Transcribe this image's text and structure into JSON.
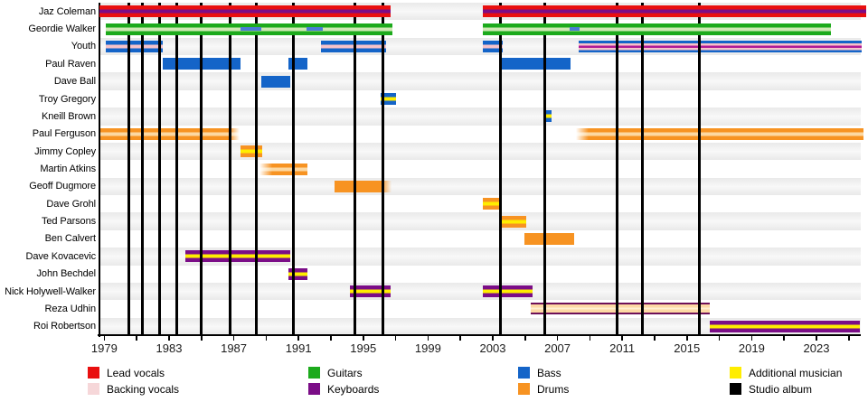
{
  "colors": {
    "lead_vocals_red": "#e90f0f",
    "keyboards_purple": "#7b0d87",
    "guitars_green": "#1caa1c",
    "pale_green_stripe": "#cfe9b4",
    "bass_blue": "#1464c8",
    "bass_overlay_blue": "#4a7bd4",
    "backing_pink_stripe": "#f7c2c9",
    "magenta_stripe": "#b01a96",
    "drums_orange": "#f79322",
    "peach_stripe": "#fcd8a2",
    "additional_yellow": "#ffed00",
    "faded_keys_edge": "#6e1058",
    "faded_keys_fill": "#fdd9a4",
    "faded_keys_center": "#fff0d2",
    "backing_vocals_pink": "#f6d7d9",
    "album_line_black": "#000000"
  },
  "legend": {
    "items": [
      {
        "label": "Lead vocals",
        "color": "#e90f0f"
      },
      {
        "label": "Backing vocals",
        "color": "#f6d7d9"
      },
      {
        "label": "Guitars",
        "color": "#1caa1c"
      },
      {
        "label": "Keyboards",
        "color": "#7b0d87"
      },
      {
        "label": "Bass",
        "color": "#1464c8"
      },
      {
        "label": "Drums",
        "color": "#f79322"
      },
      {
        "label": "Additional musician",
        "color": "#ffed00"
      },
      {
        "label": "Studio album",
        "color": "#000000"
      }
    ]
  },
  "chart_data": {
    "type": "gantt-timeline",
    "x_axis": {
      "start_year": 1978.7,
      "end_year": 2025.9,
      "minor_tick_start": 1979,
      "minor_tick_step": 2,
      "label_step": 4,
      "tick_labels": [
        "1979",
        "1983",
        "1987",
        "1991",
        "1995",
        "1999",
        "2003",
        "2007",
        "2011",
        "2015",
        "2019",
        "2023"
      ]
    },
    "albums": [
      1980.54,
      1981.33,
      1982.44,
      1983.45,
      1985.01,
      1986.8,
      1988.37,
      1990.71,
      1994.51,
      1996.19,
      2003.45,
      2006.19,
      2010.66,
      2012.22,
      2015.74
    ],
    "rows": [
      {
        "name": "Jaz Coleman",
        "segments": [
          {
            "from": 1978.7,
            "to": 1996.7,
            "style": "vocals-keys",
            "front": true
          },
          {
            "from": 2002.4,
            "to": 2026.1,
            "style": "vocals-keys",
            "front": true
          }
        ]
      },
      {
        "name": "Geordie Walker",
        "segments": [
          {
            "from": 1979.1,
            "to": 1996.8,
            "style": "guitar-backing",
            "front": true,
            "overlays": [
              [
                1987.4,
                1988.7
              ],
              [
                1991.5,
                1992.5
              ]
            ]
          },
          {
            "from": 2002.4,
            "to": 2023.9,
            "style": "guitar-backing",
            "front": true,
            "overlays": [
              [
                2007.75,
                2008.35
              ]
            ]
          }
        ]
      },
      {
        "name": "Youth",
        "segments": [
          {
            "from": 1979.1,
            "to": 1982.6,
            "style": "bass-backing"
          },
          {
            "from": 1992.4,
            "to": 1996.4,
            "style": "bass-backing"
          },
          {
            "from": 2002.4,
            "to": 2003.6,
            "style": "bass-backing"
          },
          {
            "from": 2008.3,
            "to": 2025.8,
            "style": "bass-backing-keys"
          }
        ]
      },
      {
        "name": "Paul Raven",
        "segments": [
          {
            "from": 1982.6,
            "to": 1987.4,
            "style": "bass"
          },
          {
            "from": 1990.35,
            "to": 1991.55,
            "style": "bass"
          },
          {
            "from": 2003.5,
            "to": 2007.8,
            "style": "bass"
          }
        ]
      },
      {
        "name": "Dave Ball",
        "segments": [
          {
            "from": 1988.7,
            "to": 1990.5,
            "style": "bass"
          }
        ]
      },
      {
        "name": "Troy Gregory",
        "segments": [
          {
            "from": 1996.1,
            "to": 1997.0,
            "style": "bass-session"
          }
        ]
      },
      {
        "name": "Kneill Brown",
        "segments": [
          {
            "from": 2006.15,
            "to": 2006.65,
            "style": "bass-session"
          }
        ]
      },
      {
        "name": "Paul Ferguson",
        "segments": [
          {
            "from": 1978.7,
            "to": 1987.35,
            "style": "drums-backing",
            "fade": "right"
          },
          {
            "from": 2008.15,
            "to": 2025.9,
            "style": "drums-backing",
            "fade": "left"
          }
        ]
      },
      {
        "name": "Jimmy Copley",
        "segments": [
          {
            "from": 1987.4,
            "to": 1988.75,
            "style": "drums-session"
          }
        ]
      },
      {
        "name": "Martin Atkins",
        "segments": [
          {
            "from": 1988.6,
            "to": 1991.55,
            "style": "drums-backing",
            "fade": "left"
          }
        ]
      },
      {
        "name": "Geoff Dugmore",
        "segments": [
          {
            "from": 1993.2,
            "to": 1996.75,
            "style": "drums",
            "fade": "right"
          }
        ]
      },
      {
        "name": "Dave Grohl",
        "segments": [
          {
            "from": 2002.4,
            "to": 2003.5,
            "style": "drums-session"
          }
        ]
      },
      {
        "name": "Ted Parsons",
        "segments": [
          {
            "from": 2003.5,
            "to": 2005.05,
            "style": "drums-session"
          }
        ]
      },
      {
        "name": "Ben Calvert",
        "segments": [
          {
            "from": 2004.95,
            "to": 2008.05,
            "style": "drums"
          }
        ]
      },
      {
        "name": "Dave Kovacevic",
        "segments": [
          {
            "from": 1984.0,
            "to": 1990.5,
            "style": "keys-session"
          }
        ]
      },
      {
        "name": "John Bechdel",
        "segments": [
          {
            "from": 1990.35,
            "to": 1991.55,
            "style": "keys-session"
          }
        ]
      },
      {
        "name": "Nick Holywell-Walker",
        "segments": [
          {
            "from": 1994.2,
            "to": 1996.7,
            "style": "keys-session"
          },
          {
            "from": 2002.4,
            "to": 2005.45,
            "style": "keys-session"
          }
        ]
      },
      {
        "name": "Reza Udhin",
        "segments": [
          {
            "from": 2005.35,
            "to": 2016.4,
            "style": "keys-faded"
          }
        ]
      },
      {
        "name": "Roi Robertson",
        "segments": [
          {
            "from": 2016.4,
            "to": 2025.7,
            "style": "keys-session"
          }
        ]
      }
    ]
  }
}
